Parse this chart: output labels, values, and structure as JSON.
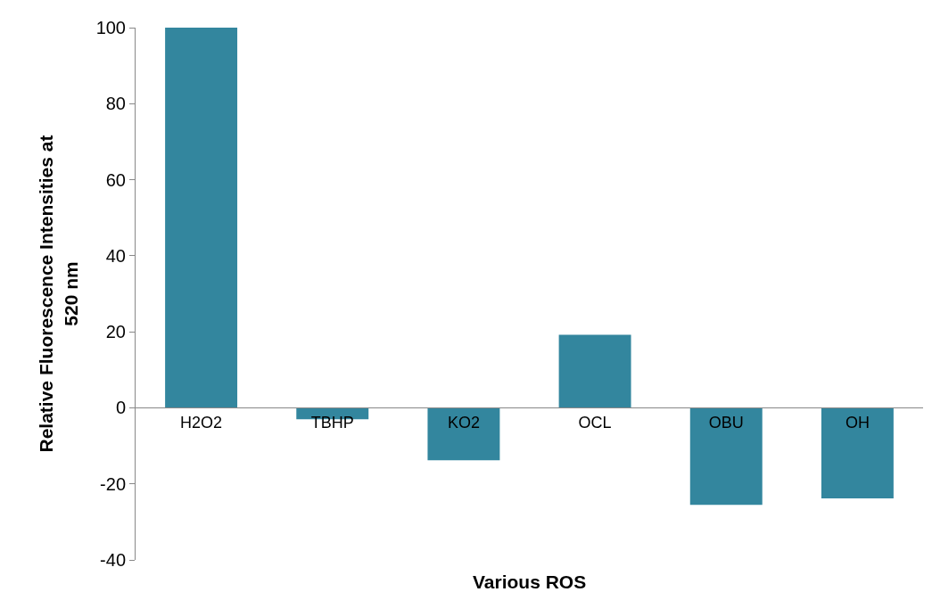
{
  "chart_data": {
    "type": "bar",
    "xlabel": "Various ROS",
    "ylabel": "Relative Fluorescence Intensities at 520 nm",
    "categories": [
      "H2O2",
      "TBHP",
      "KO2",
      "OCL",
      "OBU",
      "OH"
    ],
    "values": [
      100,
      -3.0,
      -13.8,
      19.2,
      -25.5,
      -23.8
    ],
    "color": "#33869e",
    "ylim": [
      -40,
      100
    ],
    "yticks": [
      -40,
      -20,
      0,
      20,
      40,
      60,
      80,
      100
    ]
  }
}
